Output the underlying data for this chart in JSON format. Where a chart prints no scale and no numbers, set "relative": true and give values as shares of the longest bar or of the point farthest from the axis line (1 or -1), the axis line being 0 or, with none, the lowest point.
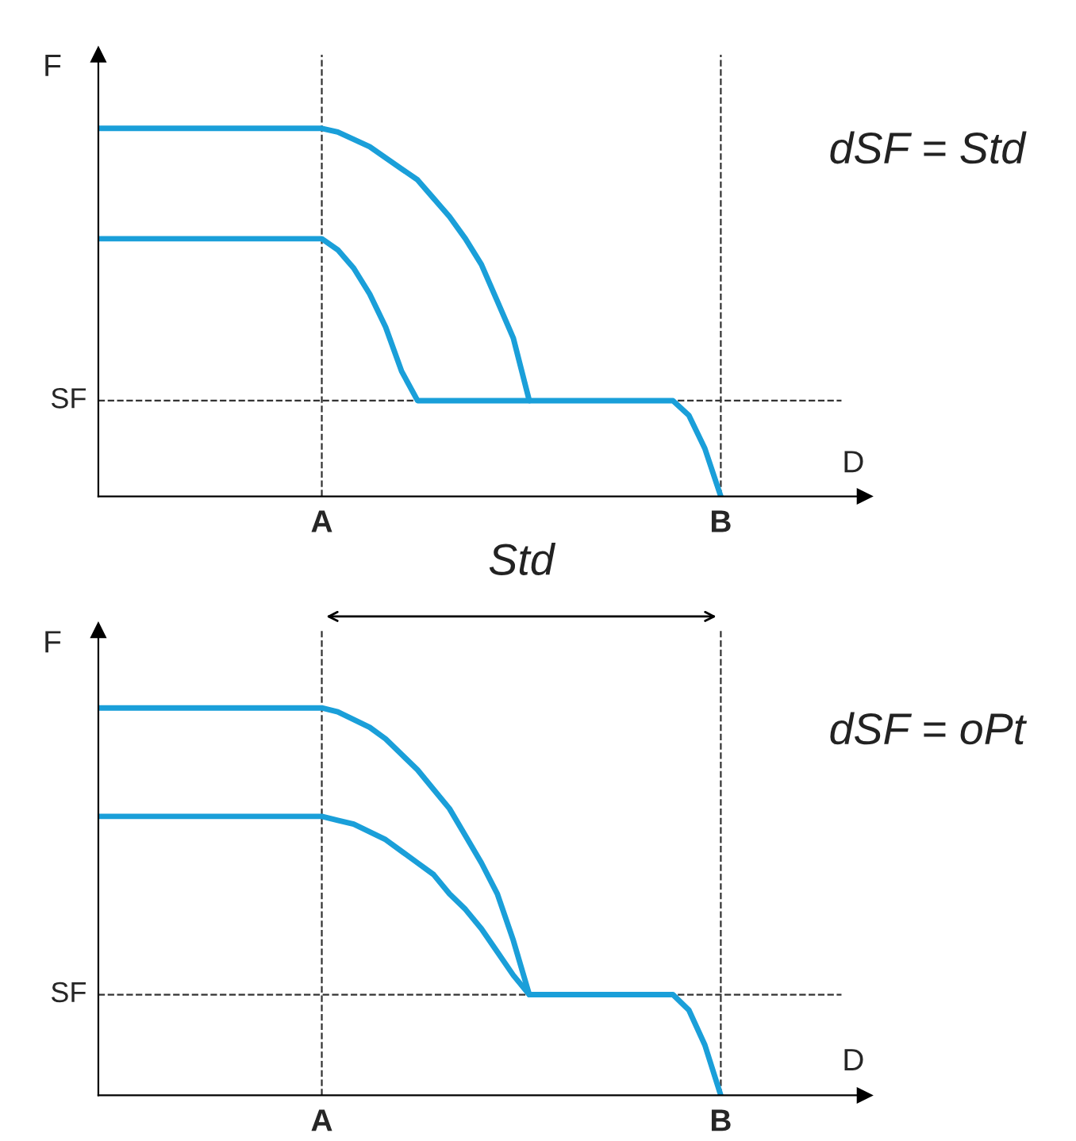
{
  "chart_data": [
    {
      "type": "line",
      "relative": true,
      "xlabel": "D",
      "ylabel": "F",
      "tick_labels": "x",
      "grid": false,
      "marker": "none",
      "line_style": "solid",
      "categories": [
        null,
        null,
        null,
        null,
        null,
        null,
        null,
        null,
        null,
        null,
        null,
        null,
        null,
        null,
        "A",
        null,
        null,
        null,
        null,
        null,
        null,
        null,
        null,
        null,
        null,
        null,
        null,
        null,
        null,
        null,
        null,
        null,
        null,
        null,
        null,
        null,
        null,
        null,
        null,
        "B",
        null,
        null,
        null,
        null,
        null,
        null,
        null,
        null,
        null
      ],
      "ref_lines": [
        {
          "axis": "x",
          "value": "A",
          "color": "#333333",
          "line_style": "dashed"
        },
        {
          "axis": "x",
          "value": "B",
          "color": "#333333",
          "line_style": "dashed"
        },
        {
          "axis": "y",
          "value": 0.26,
          "label": "SF",
          "color": "#333333",
          "line_style": "dashed"
        }
      ],
      "annotations": [
        "dSF = Std"
      ],
      "series": [
        {
          "color": "#1a9fd9",
          "values": [
            1,
            1,
            1,
            1,
            1,
            1,
            1,
            1,
            1,
            1,
            1,
            1,
            1,
            1,
            1,
            0.99,
            0.97,
            0.95,
            0.92,
            0.89,
            0.86,
            0.81,
            0.76,
            0.7,
            0.63,
            0.53,
            0.43,
            0.26,
            0.26,
            0.26,
            0.26,
            0.26,
            0.26,
            0.26,
            0.26,
            0.26,
            0.26,
            0.22,
            0.13,
            0,
            null,
            null,
            null,
            null,
            null,
            null,
            null,
            null,
            null
          ]
        },
        {
          "color": "#1a9fd9",
          "values": [
            0.7,
            0.7,
            0.7,
            0.7,
            0.7,
            0.7,
            0.7,
            0.7,
            0.7,
            0.7,
            0.7,
            0.7,
            0.7,
            0.7,
            0.7,
            0.67,
            0.62,
            0.55,
            0.46,
            0.34,
            0.26,
            0.26,
            0.26,
            0.26,
            0.26,
            0.26,
            0.26,
            0.26,
            null,
            null,
            null,
            null,
            null,
            null,
            null,
            null,
            null,
            null,
            null,
            null,
            null,
            null,
            null,
            null,
            null,
            null,
            null,
            null,
            null
          ]
        }
      ]
    },
    {
      "type": "line",
      "relative": true,
      "xlabel": "D",
      "ylabel": "F",
      "tick_labels": "x",
      "grid": false,
      "marker": "none",
      "line_style": "solid",
      "categories": [
        null,
        null,
        null,
        null,
        null,
        null,
        null,
        null,
        null,
        null,
        null,
        null,
        null,
        null,
        "A",
        null,
        null,
        null,
        null,
        null,
        null,
        null,
        null,
        null,
        null,
        null,
        null,
        null,
        null,
        null,
        null,
        null,
        null,
        null,
        null,
        null,
        null,
        null,
        null,
        "B",
        null,
        null,
        null,
        null,
        null,
        null,
        null,
        null,
        null
      ],
      "ref_lines": [
        {
          "axis": "x",
          "value": "A",
          "color": "#333333",
          "line_style": "dashed"
        },
        {
          "axis": "x",
          "value": "B",
          "color": "#333333",
          "line_style": "dashed"
        },
        {
          "axis": "y",
          "value": 0.26,
          "label": "SF",
          "color": "#333333",
          "line_style": "dashed"
        }
      ],
      "annotations": [
        "dSF = oPt",
        "Std"
      ],
      "series": [
        {
          "color": "#1a9fd9",
          "values": [
            1,
            1,
            1,
            1,
            1,
            1,
            1,
            1,
            1,
            1,
            1,
            1,
            1,
            1,
            1,
            0.99,
            0.97,
            0.95,
            0.92,
            0.88,
            0.84,
            0.79,
            0.74,
            0.67,
            0.6,
            0.52,
            0.4,
            0.26,
            null,
            null,
            null,
            null,
            null,
            null,
            null,
            null,
            null,
            null,
            null,
            null,
            null,
            null,
            null,
            null,
            null,
            null,
            null,
            null,
            null
          ]
        },
        {
          "color": "#1a9fd9",
          "values": [
            0.72,
            0.72,
            0.72,
            0.72,
            0.72,
            0.72,
            0.72,
            0.72,
            0.72,
            0.72,
            0.72,
            0.72,
            0.72,
            0.72,
            0.72,
            0.71,
            0.7,
            0.68,
            0.66,
            0.63,
            0.6,
            0.57,
            0.52,
            0.48,
            0.43,
            0.37,
            0.31,
            0.26,
            0.26,
            0.26,
            0.26,
            0.26,
            0.26,
            0.26,
            0.26,
            0.26,
            0.26,
            0.22,
            0.13,
            0,
            null,
            null,
            null,
            null,
            null,
            null,
            null,
            null,
            null
          ]
        }
      ]
    }
  ]
}
